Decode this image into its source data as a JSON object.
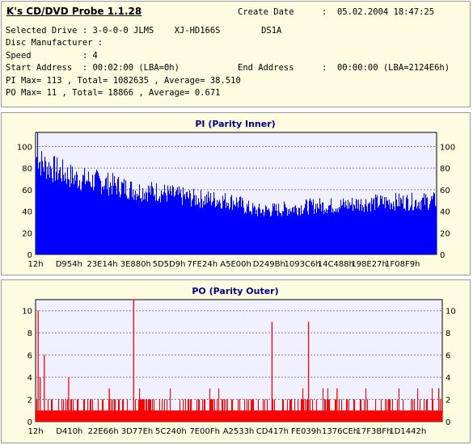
{
  "info": {
    "title": "K's CD/DVD Probe 1.1.28",
    "create_date_label": "Create Date",
    "create_date_value": ":  05.02.2004 18:47:25",
    "selected_drive": "Selected Drive : 3-0-0-0 JLMS    XJ-HD166S        DS1A",
    "disc_manufacturer": "Disc Manufacturer :",
    "speed": "Speed          : 4",
    "start_address": "Start Address  : 00:02:00 (LBA=0h)",
    "end_address_label": "End Address",
    "end_address_value": ":  00:00:00 (LBA=2124E6h)",
    "pi_stats": "PI Max= 113 , Total= 1082635 , Average= 38.510",
    "po_stats": "PO Max= 11 , Total= 18866 , Average= 0.671"
  },
  "colors": {
    "pi_bar": "#0000ff",
    "po_bar": "#ff0000",
    "plot_bg": "#f0f0ff",
    "grid": "#808080",
    "title": "#000080"
  },
  "chart_data": [
    {
      "type": "bar",
      "title": "PI (Parity Inner)",
      "xlabel": "",
      "ylabel": "",
      "x_tick_labels": [
        "12h",
        "D954h",
        "23E14h",
        "3E880h",
        "5D5D9h",
        "7FE24h",
        "A5E00h",
        "D249Bh",
        "1093C6h",
        "14C488h",
        "198E27h",
        "1F08F9h"
      ],
      "y_ticks": [
        0,
        20,
        40,
        60,
        80,
        100
      ],
      "ylim": [
        0,
        113
      ],
      "grid": true,
      "envelope": {
        "x_fraction": [
          0.0,
          0.02,
          0.05,
          0.1,
          0.15,
          0.2,
          0.25,
          0.3,
          0.35,
          0.4,
          0.45,
          0.5,
          0.52,
          0.55,
          0.6,
          0.65,
          0.7,
          0.75,
          0.8,
          0.85,
          0.9,
          0.95,
          1.0
        ],
        "values": [
          95,
          88,
          83,
          75,
          72,
          68,
          63,
          62,
          58,
          55,
          54,
          52,
          47,
          43,
          44,
          46,
          48,
          48,
          50,
          51,
          52,
          52,
          53
        ],
        "max": 113,
        "average": 38.51
      }
    },
    {
      "type": "bar",
      "title": "PO (Parity Outer)",
      "xlabel": "",
      "ylabel": "",
      "x_tick_labels": [
        "12h",
        "D410h",
        "22E66h",
        "3D77Eh",
        "5C240h",
        "7E00Fh",
        "A2533h",
        "CD417h",
        "FE039h",
        "1376CEh",
        "17F3BFh",
        "1D1442h"
      ],
      "y_ticks": [
        0,
        2,
        4,
        6,
        8,
        10
      ],
      "ylim": [
        0,
        11
      ],
      "grid": true,
      "baseline_value": 1,
      "spikes": [
        {
          "x_fraction": 0.005,
          "value": 10
        },
        {
          "x_fraction": 0.02,
          "value": 6
        },
        {
          "x_fraction": 0.01,
          "value": 4
        },
        {
          "x_fraction": 0.08,
          "value": 4
        },
        {
          "x_fraction": 0.18,
          "value": 3
        },
        {
          "x_fraction": 0.24,
          "value": 11
        },
        {
          "x_fraction": 0.58,
          "value": 9
        },
        {
          "x_fraction": 0.67,
          "value": 9
        },
        {
          "x_fraction": 0.74,
          "value": 3
        },
        {
          "x_fraction": 0.99,
          "value": 3
        }
      ],
      "max": 11,
      "average": 0.671
    }
  ]
}
